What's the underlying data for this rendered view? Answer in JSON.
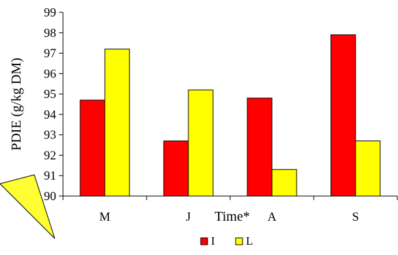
{
  "chart_data": {
    "type": "bar",
    "title": "",
    "xlabel": "Time*",
    "ylabel": "PDIE (g/kg DM)",
    "categories": [
      "M",
      "J",
      "A",
      "S"
    ],
    "ylim": [
      90,
      99
    ],
    "yticks": [
      90,
      91,
      92,
      93,
      94,
      95,
      96,
      97,
      98,
      99
    ],
    "grid": false,
    "legend_position": "bottom",
    "series": [
      {
        "name": "I",
        "color": "#ff0000",
        "values": [
          94.7,
          92.7,
          94.8,
          97.9
        ]
      },
      {
        "name": "L",
        "color": "#ffff00",
        "values": [
          97.2,
          95.2,
          91.3,
          92.7
        ]
      }
    ]
  }
}
